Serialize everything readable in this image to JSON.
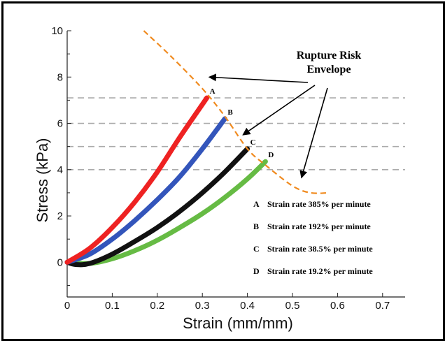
{
  "chart_data": {
    "type": "line",
    "xlabel": "Strain (mm/mm)",
    "ylabel": "Stress (kPa)",
    "xlim": [
      0,
      0.75
    ],
    "ylim": [
      -1.5,
      10
    ],
    "x_ticks": [
      "0",
      "0.1",
      "0.2",
      "0.3",
      "0.4",
      "0.5",
      "0.6",
      "0.7"
    ],
    "y_ticks": [
      "0",
      "2",
      "4",
      "6",
      "8",
      "10"
    ],
    "series": [
      {
        "name": "A",
        "color": "#ee2222",
        "x": [
          0,
          0.05,
          0.1,
          0.15,
          0.2,
          0.25,
          0.31
        ],
        "y": [
          0,
          0.6,
          1.5,
          2.6,
          3.9,
          5.4,
          7.1
        ]
      },
      {
        "name": "B",
        "color": "#3355bb",
        "x": [
          0,
          0.05,
          0.1,
          0.15,
          0.2,
          0.25,
          0.3,
          0.35
        ],
        "y": [
          0,
          0.35,
          1.0,
          1.8,
          2.7,
          3.7,
          4.9,
          6.2
        ]
      },
      {
        "name": "C",
        "color": "#111111",
        "x": [
          0,
          0.02,
          0.05,
          0.1,
          0.15,
          0.2,
          0.25,
          0.3,
          0.35,
          0.4
        ],
        "y": [
          0,
          -0.1,
          -0.05,
          0.35,
          0.9,
          1.5,
          2.2,
          3.0,
          3.9,
          4.9
        ]
      },
      {
        "name": "D",
        "color": "#66bb44",
        "x": [
          0,
          0.05,
          0.1,
          0.15,
          0.2,
          0.25,
          0.3,
          0.35,
          0.4,
          0.44
        ],
        "y": [
          0,
          -0.05,
          0.15,
          0.5,
          0.95,
          1.5,
          2.1,
          2.8,
          3.6,
          4.35
        ]
      }
    ],
    "point_labels": [
      {
        "label": "A",
        "x": 0.31,
        "y": 7.1
      },
      {
        "label": "B",
        "x": 0.35,
        "y": 6.2
      },
      {
        "label": "C",
        "x": 0.4,
        "y": 4.9
      },
      {
        "label": "D",
        "x": 0.44,
        "y": 4.35
      }
    ],
    "envelope": {
      "color": "#f08a1e",
      "x": [
        0.17,
        0.23,
        0.3,
        0.35,
        0.4,
        0.44,
        0.5,
        0.54,
        0.58
      ],
      "y": [
        10.0,
        8.9,
        7.5,
        6.3,
        4.9,
        4.2,
        3.3,
        3.0,
        3.0
      ]
    },
    "reference_lines": [
      7.1,
      6.0,
      5.0,
      4.0
    ],
    "grid": false,
    "annotation": {
      "line1": "Rupture Risk",
      "line2": "Envelope"
    },
    "legend": {
      "placement": "right",
      "entries": [
        {
          "key": "A",
          "text": "Strain rate 385% per minute"
        },
        {
          "key": "B",
          "text": "Strain rate 192% per minute"
        },
        {
          "key": "C",
          "text": "Strain rate 38.5% per minute"
        },
        {
          "key": "D",
          "text": "Strain rate 19.2% per minute"
        }
      ]
    }
  }
}
